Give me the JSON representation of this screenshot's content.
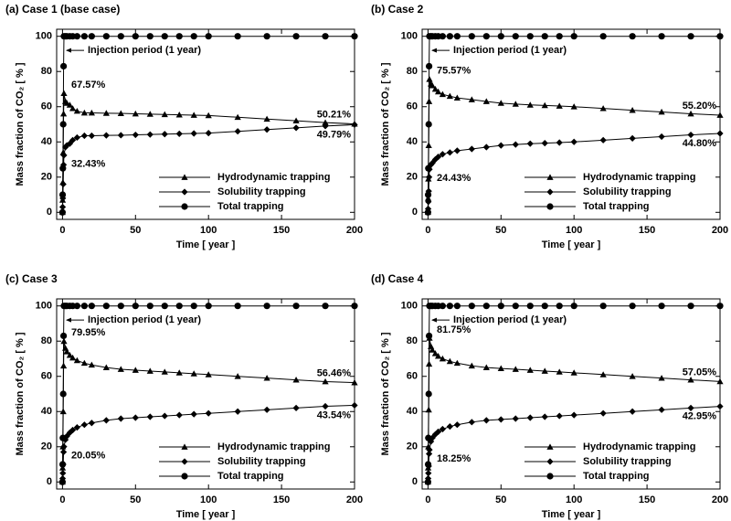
{
  "chart_data": [
    {
      "type": "line",
      "title": "(a) Case 1 (base case)",
      "xlabel": "Time [ year ]",
      "ylabel": "Mass fraction of CO₂ [ % ]",
      "x": [
        0,
        0.1,
        0.25,
        0.5,
        0.75,
        1,
        2,
        3,
        5,
        7,
        10,
        15,
        20,
        30,
        40,
        50,
        60,
        70,
        80,
        90,
        100,
        120,
        140,
        160,
        180,
        200
      ],
      "series": [
        {
          "name": "Hydrodynamic trapping",
          "marker": "triangle",
          "color": "#000000",
          "values": [
            0,
            7,
            17,
            34,
            56,
            67.57,
            63,
            62,
            61,
            59,
            57.5,
            56.5,
            56.5,
            56.3,
            56.2,
            56,
            55.8,
            55.6,
            55.4,
            55.2,
            55,
            54,
            53,
            52,
            51,
            50.21
          ]
        },
        {
          "name": "Solubility trapping",
          "marker": "diamond",
          "color": "#000000",
          "values": [
            0,
            3,
            8,
            16,
            27,
            32.43,
            37,
            38,
            39,
            41,
            42.5,
            43.5,
            43.5,
            43.7,
            43.8,
            44,
            44.2,
            44.4,
            44.6,
            44.8,
            45,
            46,
            47,
            48,
            49,
            49.79
          ]
        },
        {
          "name": "Total trapping",
          "marker": "circle",
          "color": "#000000",
          "values": [
            0,
            10,
            25,
            50,
            83,
            100,
            100,
            100,
            100,
            100,
            100,
            100,
            100,
            100,
            100,
            100,
            100,
            100,
            100,
            100,
            100,
            100,
            100,
            100,
            100,
            100
          ]
        }
      ],
      "xlim": [
        -4,
        200
      ],
      "ylim": [
        -4,
        104
      ],
      "xticks": [
        0,
        50,
        100,
        150,
        200
      ],
      "yticks": [
        0,
        20,
        40,
        60,
        80,
        100
      ],
      "legend": "lower right",
      "annotations": [
        {
          "text": "Injection period (1 year)",
          "x": 1,
          "y": 92
        },
        {
          "text": "67.57%",
          "x": 1,
          "y": 67.57
        },
        {
          "text": "32.43%",
          "x": 1,
          "y": 32.43
        },
        {
          "text": "50.21%",
          "x": 200,
          "y": 50.21
        },
        {
          "text": "49.79%",
          "x": 200,
          "y": 49.79
        }
      ]
    },
    {
      "type": "line",
      "title": "(b) Case 2",
      "xlabel": "Time [ year ]",
      "ylabel": "Mass fraction of CO₂ [ % ]",
      "x": [
        0,
        0.1,
        0.25,
        0.5,
        0.75,
        1,
        2,
        3,
        5,
        7,
        10,
        15,
        20,
        30,
        40,
        50,
        60,
        70,
        80,
        90,
        100,
        120,
        140,
        160,
        180,
        200
      ],
      "series": [
        {
          "name": "Hydrodynamic trapping",
          "marker": "triangle",
          "color": "#000000",
          "values": [
            0,
            8,
            19,
            38,
            63,
            75.57,
            73,
            72,
            70,
            68.5,
            67,
            66,
            65,
            64,
            63,
            62,
            61.5,
            61,
            60.7,
            60.4,
            60,
            59,
            58,
            57,
            56,
            55.2
          ]
        },
        {
          "name": "Solubility trapping",
          "marker": "diamond",
          "color": "#000000",
          "values": [
            0,
            2,
            6,
            12,
            20,
            24.43,
            27,
            28,
            30,
            31.5,
            33,
            34,
            35,
            36,
            37,
            38,
            38.5,
            39,
            39.3,
            39.6,
            40,
            41,
            42,
            43,
            44,
            44.8
          ]
        },
        {
          "name": "Total trapping",
          "marker": "circle",
          "color": "#000000",
          "values": [
            0,
            10,
            25,
            50,
            83,
            100,
            100,
            100,
            100,
            100,
            100,
            100,
            100,
            100,
            100,
            100,
            100,
            100,
            100,
            100,
            100,
            100,
            100,
            100,
            100,
            100
          ]
        }
      ],
      "xlim": [
        -4,
        200
      ],
      "ylim": [
        -4,
        104
      ],
      "xticks": [
        0,
        50,
        100,
        150,
        200
      ],
      "yticks": [
        0,
        20,
        40,
        60,
        80,
        100
      ],
      "legend": "lower right",
      "annotations": [
        {
          "text": "Injection period (1 year)",
          "x": 1,
          "y": 92
        },
        {
          "text": "75.57%",
          "x": 1,
          "y": 75.57
        },
        {
          "text": "24.43%",
          "x": 1,
          "y": 24.43
        },
        {
          "text": "55.20%",
          "x": 200,
          "y": 55.2
        },
        {
          "text": "44.80%",
          "x": 200,
          "y": 44.8
        }
      ]
    },
    {
      "type": "line",
      "title": "(c) Case 3",
      "xlabel": "Time [ year ]",
      "ylabel": "Mass fraction of CO₂ [ % ]",
      "x": [
        0,
        0.1,
        0.25,
        0.5,
        0.75,
        1,
        2,
        3,
        5,
        7,
        10,
        15,
        20,
        30,
        40,
        50,
        60,
        70,
        80,
        90,
        100,
        120,
        140,
        160,
        180,
        200
      ],
      "series": [
        {
          "name": "Hydrodynamic trapping",
          "marker": "triangle",
          "color": "#000000",
          "values": [
            0,
            8,
            20,
            40,
            66,
            79.95,
            76,
            74,
            72,
            70.5,
            69,
            67.5,
            66.5,
            65,
            64,
            63.5,
            63,
            62.5,
            62,
            61.5,
            61,
            60,
            59,
            58,
            57,
            56.46
          ]
        },
        {
          "name": "Solubility trapping",
          "marker": "diamond",
          "color": "#000000",
          "values": [
            0,
            2,
            5,
            10,
            17,
            20.05,
            24,
            26,
            28,
            29.5,
            31,
            32.5,
            33.5,
            35,
            36,
            36.5,
            37,
            37.5,
            38,
            38.5,
            39,
            40,
            41,
            42,
            43,
            43.54
          ]
        },
        {
          "name": "Total trapping",
          "marker": "circle",
          "color": "#000000",
          "values": [
            0,
            10,
            25,
            50,
            83,
            100,
            100,
            100,
            100,
            100,
            100,
            100,
            100,
            100,
            100,
            100,
            100,
            100,
            100,
            100,
            100,
            100,
            100,
            100,
            100,
            100
          ]
        }
      ],
      "xlim": [
        -4,
        200
      ],
      "ylim": [
        -4,
        104
      ],
      "xticks": [
        0,
        50,
        100,
        150,
        200
      ],
      "yticks": [
        0,
        20,
        40,
        60,
        80,
        100
      ],
      "legend": "lower right",
      "annotations": [
        {
          "text": "Injection period (1 year)",
          "x": 1,
          "y": 92
        },
        {
          "text": "79.95%",
          "x": 1,
          "y": 79.95
        },
        {
          "text": "20.05%",
          "x": 1,
          "y": 20.05
        },
        {
          "text": "56.46%",
          "x": 200,
          "y": 56.46
        },
        {
          "text": "43.54%",
          "x": 200,
          "y": 43.54
        }
      ]
    },
    {
      "type": "line",
      "title": "(d) Case 4",
      "xlabel": "Time [ year ]",
      "ylabel": "Mass fraction of CO₂ [ % ]",
      "x": [
        0,
        0.1,
        0.25,
        0.5,
        0.75,
        1,
        2,
        3,
        5,
        7,
        10,
        15,
        20,
        30,
        40,
        50,
        60,
        70,
        80,
        90,
        100,
        120,
        140,
        160,
        180,
        200
      ],
      "series": [
        {
          "name": "Hydrodynamic trapping",
          "marker": "triangle",
          "color": "#000000",
          "values": [
            0,
            8,
            20,
            41,
            67,
            81.75,
            77,
            75,
            73,
            71.5,
            70,
            68.5,
            67.5,
            66,
            65,
            64.5,
            64,
            63.5,
            63,
            62.5,
            62,
            61,
            60,
            59,
            58,
            57.05
          ]
        },
        {
          "name": "Solubility trapping",
          "marker": "diamond",
          "color": "#000000",
          "values": [
            0,
            2,
            5,
            9,
            16,
            18.25,
            23,
            25,
            27,
            28.5,
            30,
            31.5,
            32.5,
            34,
            35,
            35.5,
            36,
            36.5,
            37,
            37.5,
            38,
            39,
            40,
            41,
            42,
            42.95
          ]
        },
        {
          "name": "Total trapping",
          "marker": "circle",
          "color": "#000000",
          "values": [
            0,
            10,
            25,
            50,
            83,
            100,
            100,
            100,
            100,
            100,
            100,
            100,
            100,
            100,
            100,
            100,
            100,
            100,
            100,
            100,
            100,
            100,
            100,
            100,
            100,
            100
          ]
        }
      ],
      "xlim": [
        -4,
        200
      ],
      "ylim": [
        -4,
        104
      ],
      "xticks": [
        0,
        50,
        100,
        150,
        200
      ],
      "yticks": [
        0,
        20,
        40,
        60,
        80,
        100
      ],
      "legend": "lower right",
      "annotations": [
        {
          "text": "Injection period (1 year)",
          "x": 1,
          "y": 92
        },
        {
          "text": "81.75%",
          "x": 1,
          "y": 81.75
        },
        {
          "text": "18.25%",
          "x": 1,
          "y": 18.25
        },
        {
          "text": "57.05%",
          "x": 200,
          "y": 57.05
        },
        {
          "text": "42.95%",
          "x": 200,
          "y": 42.95
        }
      ]
    }
  ]
}
